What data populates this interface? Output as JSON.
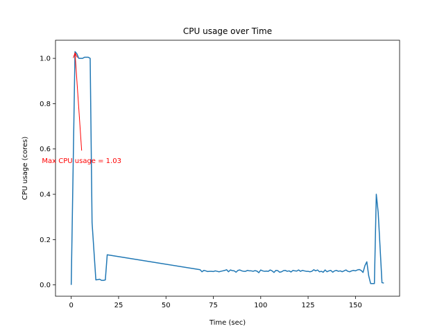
{
  "chart_data": {
    "type": "line",
    "title": "CPU usage over Time",
    "xlabel": "Time (sec)",
    "ylabel": "CPU usage (cores)",
    "xlim": [
      -8.3,
      173.3
    ],
    "ylim": [
      -0.05,
      1.08
    ],
    "xticks": [
      0,
      25,
      50,
      75,
      100,
      125,
      150
    ],
    "yticks": [
      0.0,
      0.2,
      0.4,
      0.6,
      0.8,
      1.0
    ],
    "xtick_labels": [
      "0",
      "25",
      "50",
      "75",
      "100",
      "125",
      "150"
    ],
    "ytick_labels": [
      "0.0",
      "0.2",
      "0.4",
      "0.6",
      "0.8",
      "1.0"
    ],
    "grid": false,
    "series": [
      {
        "color": "#1f77b4",
        "x": [
          0,
          2,
          3,
          4,
          5,
          6,
          7,
          8,
          9,
          10,
          11,
          13,
          15,
          16,
          17,
          18,
          19,
          68,
          69,
          70,
          71,
          72,
          73,
          74,
          75,
          76,
          77,
          78,
          79,
          80,
          81,
          82,
          83,
          84,
          85,
          86,
          87,
          88,
          89,
          90,
          91,
          92,
          93,
          94,
          95,
          96,
          97,
          98,
          99,
          100,
          101,
          102,
          103,
          104,
          105,
          106,
          107,
          108,
          109,
          110,
          111,
          112,
          113,
          114,
          115,
          116,
          117,
          118,
          119,
          120,
          121,
          122,
          123,
          124,
          125,
          126,
          127,
          128,
          129,
          130,
          131,
          132,
          133,
          134,
          135,
          136,
          137,
          138,
          139,
          140,
          141,
          142,
          143,
          144,
          145,
          146,
          147,
          148,
          149,
          150,
          151,
          152,
          153,
          154,
          155,
          156,
          157,
          158,
          159,
          160,
          161,
          162,
          164,
          165
        ],
        "y": [
          0.0,
          1.03,
          1.02,
          1.0,
          1.0,
          1.0,
          1.005,
          1.005,
          1.005,
          1.0,
          0.275,
          0.022,
          0.025,
          0.02,
          0.02,
          0.022,
          0.133,
          0.067,
          0.058,
          0.064,
          0.062,
          0.059,
          0.06,
          0.06,
          0.059,
          0.062,
          0.06,
          0.058,
          0.06,
          0.062,
          0.064,
          0.067,
          0.058,
          0.066,
          0.063,
          0.062,
          0.056,
          0.064,
          0.066,
          0.062,
          0.06,
          0.06,
          0.064,
          0.062,
          0.062,
          0.06,
          0.063,
          0.061,
          0.054,
          0.066,
          0.062,
          0.06,
          0.061,
          0.06,
          0.066,
          0.062,
          0.055,
          0.064,
          0.063,
          0.056,
          0.058,
          0.063,
          0.064,
          0.06,
          0.062,
          0.057,
          0.064,
          0.062,
          0.061,
          0.066,
          0.06,
          0.064,
          0.062,
          0.06,
          0.06,
          0.058,
          0.06,
          0.067,
          0.062,
          0.066,
          0.058,
          0.06,
          0.056,
          0.066,
          0.058,
          0.062,
          0.064,
          0.056,
          0.062,
          0.064,
          0.06,
          0.062,
          0.058,
          0.062,
          0.066,
          0.06,
          0.058,
          0.062,
          0.064,
          0.062,
          0.066,
          0.068,
          0.064,
          0.055,
          0.085,
          0.102,
          0.04,
          0.006,
          0.006,
          0.006,
          0.4,
          0.32,
          0.01,
          0.008
        ]
      }
    ],
    "annotations": [
      {
        "text": "Max CPU usage = 1.03",
        "color": "#ff0000",
        "xy": [
          2,
          1.03
        ],
        "xytext": [
          5.5,
          0.55
        ]
      }
    ]
  }
}
